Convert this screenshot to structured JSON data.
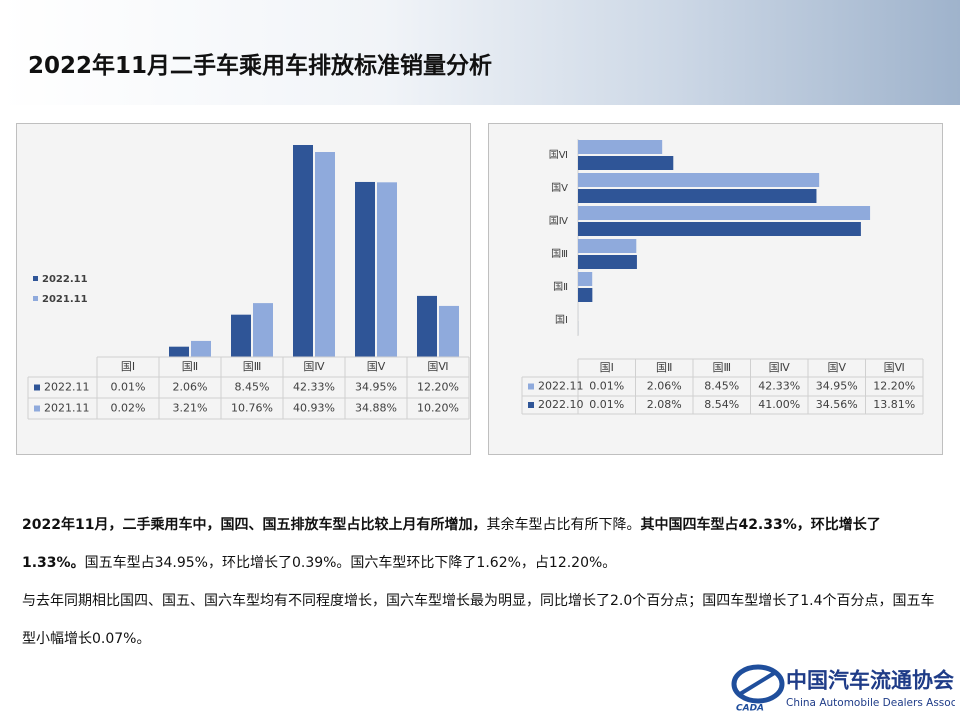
{
  "header": {
    "title": "2022年11月二手车乘用车排放标准销量分析"
  },
  "chart_data": [
    {
      "type": "bar",
      "categories": [
        "国Ⅰ",
        "国Ⅱ",
        "国Ⅲ",
        "国Ⅳ",
        "国Ⅴ",
        "国Ⅵ"
      ],
      "series": [
        {
          "name": "2022.11",
          "color": "#2f5597",
          "values": [
            0.01,
            2.06,
            8.45,
            42.33,
            34.95,
            12.2
          ],
          "value_labels": [
            "0.01%",
            "2.06%",
            "8.45%",
            "42.33%",
            "34.95%",
            "12.20%"
          ]
        },
        {
          "name": "2021.11",
          "color": "#8faadc",
          "values": [
            0.02,
            3.21,
            10.76,
            40.93,
            34.88,
            10.2
          ],
          "value_labels": [
            "0.02%",
            "3.21%",
            "10.76%",
            "40.93%",
            "34.88%",
            "10.20%"
          ]
        }
      ]
    },
    {
      "type": "barh",
      "categories": [
        "国Ⅰ",
        "国Ⅱ",
        "国Ⅲ",
        "国Ⅳ",
        "国Ⅴ",
        "国Ⅵ"
      ],
      "series": [
        {
          "name": "2022.11",
          "color": "#8faadc",
          "values": [
            0.01,
            2.06,
            8.45,
            42.33,
            34.95,
            12.2
          ],
          "value_labels": [
            "0.01%",
            "2.06%",
            "8.45%",
            "42.33%",
            "34.95%",
            "12.20%"
          ]
        },
        {
          "name": "2022.10",
          "color": "#2f5597",
          "values": [
            0.01,
            2.08,
            8.54,
            41.0,
            34.56,
            13.81
          ],
          "value_labels": [
            "0.01%",
            "2.08%",
            "8.54%",
            "41.00%",
            "34.56%",
            "13.81%"
          ]
        }
      ]
    }
  ],
  "text": {
    "paragraphs": [
      {
        "runs": [
          {
            "text": "2022年11月，二手乘用车中，国四、国五排放车型占比较上月有所增加，",
            "bold": true
          },
          {
            "text": "其余车型占比有所下降。",
            "bold": false
          },
          {
            "text": "其中国四车型占42.33%，环比增长了1.33%。",
            "bold": true
          },
          {
            "text": "国五车型占34.95%，环比增长了0.39%。国六车型环比下降了1.62%，占12.20%。",
            "bold": false
          }
        ]
      },
      {
        "runs": [
          {
            "text": "与去年同期相比国四、国五、国六车型均有不同程度增长，国六车型增长最为明显，同比增长了2.0个百分点；国四车型增长了1.4个百分点，国五车型小幅增长0.07%。",
            "bold": false
          }
        ]
      }
    ]
  },
  "logo": {
    "mark": "CADA",
    "name": "中国汽车流通协会",
    "english": "China Automobile Dealers Association"
  }
}
